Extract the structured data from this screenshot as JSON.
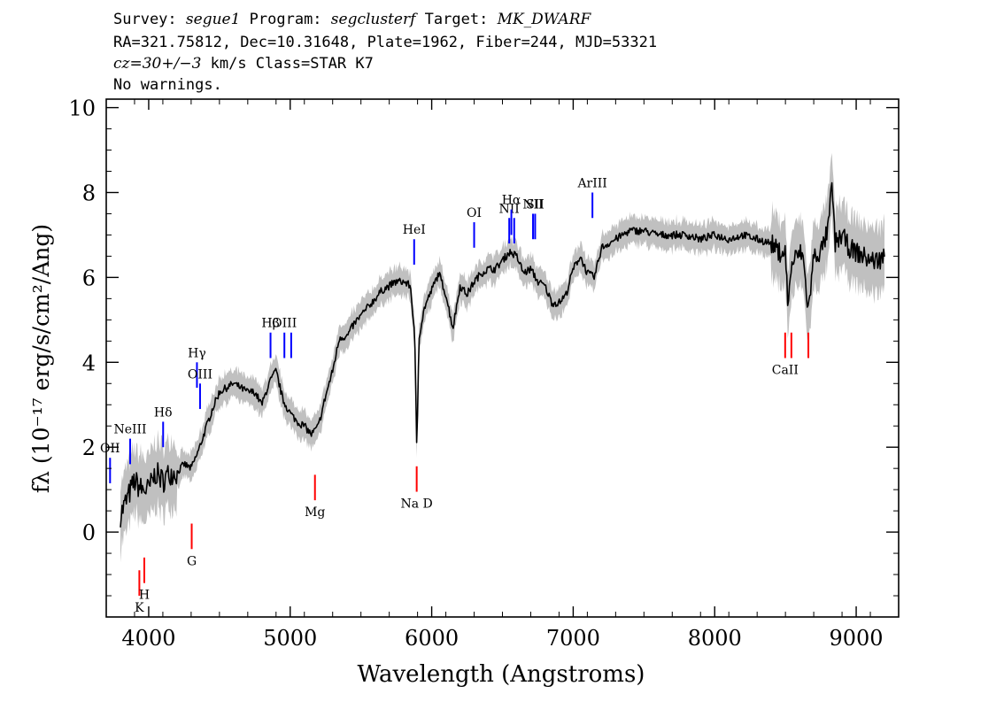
{
  "header": {
    "survey_label": "Survey:",
    "survey": "segue1",
    "program_label": "Program:",
    "program": "segclusterf",
    "target_label": "Target:",
    "target": "MK_DWARF",
    "line2": "RA=321.75812, Dec=10.31648, Plate=1962, Fiber=244, MJD=53321",
    "cz": "cz=30+/−3",
    "cz_rest": " km/s Class=STAR K7",
    "warnings": "No warnings."
  },
  "colors": {
    "emission": "#0000ff",
    "absorption": "#ff0000",
    "spectrum": "#000000",
    "error": "#c0c0c0"
  },
  "chart_data": {
    "type": "line",
    "xlabel": "Wavelength (Angstroms)",
    "ylabel": "fλ (10⁻¹⁷ erg/s/cm²/Ang)",
    "xlim": [
      3700,
      9300
    ],
    "ylim": [
      -2,
      10.2
    ],
    "x_ticks": [
      4000,
      5000,
      6000,
      7000,
      8000,
      9000
    ],
    "y_ticks": [
      0,
      2,
      4,
      6,
      8,
      10
    ],
    "grid": false,
    "series": [
      {
        "x": [
          3800,
          3850,
          3900,
          3950,
          4000,
          4050,
          4100,
          4150,
          4200,
          4250,
          4300,
          4350,
          4400,
          4450,
          4500,
          4550,
          4600,
          4650,
          4700,
          4750,
          4800,
          4850,
          4900,
          4950,
          5000,
          5050,
          5100,
          5150,
          5200,
          5250,
          5300,
          5350,
          5400,
          5450,
          5500,
          5550,
          5600,
          5650,
          5700,
          5750,
          5800,
          5850,
          5880,
          5895,
          5910,
          5950,
          6000,
          6050,
          6100,
          6150,
          6200,
          6250,
          6300,
          6350,
          6400,
          6450,
          6500,
          6550,
          6600,
          6650,
          6700,
          6750,
          6800,
          6850,
          6900,
          6950,
          7000,
          7050,
          7100,
          7150,
          7200,
          7250,
          7300,
          7400,
          7500,
          7600,
          7700,
          7800,
          7900,
          8000,
          8100,
          8200,
          8300,
          8400,
          8450,
          8498,
          8520,
          8542,
          8580,
          8620,
          8662,
          8700,
          8750,
          8800,
          8830,
          8850,
          8900,
          8950,
          9000,
          9050,
          9100,
          9150,
          9200
        ],
        "y": [
          0.4,
          0.8,
          1.2,
          1.0,
          1.0,
          1.4,
          1.2,
          1.4,
          1.4,
          1.6,
          1.5,
          1.9,
          2.4,
          2.9,
          3.3,
          3.4,
          3.5,
          3.4,
          3.3,
          3.3,
          3.0,
          3.5,
          3.8,
          3.1,
          2.8,
          2.6,
          2.5,
          2.3,
          2.5,
          3.2,
          3.8,
          4.6,
          4.6,
          4.9,
          5.1,
          5.3,
          5.5,
          5.7,
          5.8,
          5.9,
          5.9,
          5.8,
          4.6,
          1.9,
          4.6,
          5.3,
          5.7,
          6.1,
          5.6,
          4.8,
          5.8,
          5.6,
          5.9,
          6.1,
          6.2,
          6.2,
          6.4,
          6.6,
          6.5,
          6.1,
          6.2,
          5.9,
          5.8,
          5.4,
          5.4,
          5.6,
          6.2,
          6.5,
          6.1,
          6.0,
          6.7,
          6.8,
          6.9,
          7.1,
          7.1,
          7.0,
          7.0,
          7.0,
          6.9,
          7.0,
          6.9,
          7.0,
          6.9,
          6.8,
          6.6,
          6.6,
          5.3,
          6.3,
          6.5,
          6.6,
          5.2,
          6.5,
          6.6,
          7.1,
          8.2,
          6.8,
          7.0,
          6.7,
          6.6,
          6.5,
          6.4,
          6.4,
          6.5
        ]
      }
    ],
    "lines": [
      {
        "label": "OII",
        "wave": 3727,
        "kind": "emission",
        "y0": 1.15,
        "y1": 1.75
      },
      {
        "label": "NeIII",
        "wave": 3869,
        "kind": "emission",
        "y0": 1.6,
        "y1": 2.2
      },
      {
        "label": "K",
        "wave": 3934,
        "kind": "absorption",
        "y0": -1.5,
        "y1": -0.9
      },
      {
        "label": "H",
        "wave": 3969,
        "kind": "absorption",
        "y0": -1.2,
        "y1": -0.6
      },
      {
        "label": "Hδ",
        "wave": 4102,
        "kind": "emission",
        "y0": 2.0,
        "y1": 2.6
      },
      {
        "label": "G",
        "wave": 4304,
        "kind": "absorption",
        "y0": -0.4,
        "y1": 0.2
      },
      {
        "label": "Hγ",
        "wave": 4341,
        "kind": "emission",
        "y0": 3.4,
        "y1": 4.0
      },
      {
        "label": "OIII",
        "wave": 4363,
        "kind": "emission",
        "y0": 2.9,
        "y1": 3.5
      },
      {
        "label": "Hβ",
        "wave": 4861,
        "kind": "emission",
        "y0": 4.1,
        "y1": 4.7
      },
      {
        "label": "OIII",
        "wave": 4959,
        "kind": "emission",
        "y0": 4.1,
        "y1": 4.7
      },
      {
        "label": "",
        "wave": 5007,
        "kind": "emission",
        "y0": 4.1,
        "y1": 4.7
      },
      {
        "label": "Mg",
        "wave": 5175,
        "kind": "absorption",
        "y0": 0.75,
        "y1": 1.35
      },
      {
        "label": "Na D",
        "wave": 5894,
        "kind": "absorption",
        "y0": 0.95,
        "y1": 1.55
      },
      {
        "label": "HeI",
        "wave": 5876,
        "kind": "emission",
        "y0": 6.3,
        "y1": 6.9
      },
      {
        "label": "OI",
        "wave": 6300,
        "kind": "emission",
        "y0": 6.7,
        "y1": 7.3
      },
      {
        "label": "NII",
        "wave": 6548,
        "kind": "emission",
        "y0": 6.8,
        "y1": 7.4
      },
      {
        "label": "Hα",
        "wave": 6563,
        "kind": "emission",
        "y0": 7.0,
        "y1": 7.6
      },
      {
        "label": "",
        "wave": 6583,
        "kind": "emission",
        "y0": 6.8,
        "y1": 7.4
      },
      {
        "label": "NII",
        "wave": 6716,
        "kind": "emission",
        "y0": 6.9,
        "y1": 7.5
      },
      {
        "label": "SII",
        "wave": 6731,
        "kind": "emission",
        "y0": 6.9,
        "y1": 7.5
      },
      {
        "label": "ArIII",
        "wave": 7136,
        "kind": "emission",
        "y0": 7.4,
        "y1": 8.0
      },
      {
        "label": "CaII",
        "wave": 8498,
        "kind": "absorption",
        "y0": 4.1,
        "y1": 4.7
      },
      {
        "label": "",
        "wave": 8542,
        "kind": "absorption",
        "y0": 4.1,
        "y1": 4.7
      },
      {
        "label": "",
        "wave": 8662,
        "kind": "absorption",
        "y0": 4.1,
        "y1": 4.7
      }
    ]
  }
}
